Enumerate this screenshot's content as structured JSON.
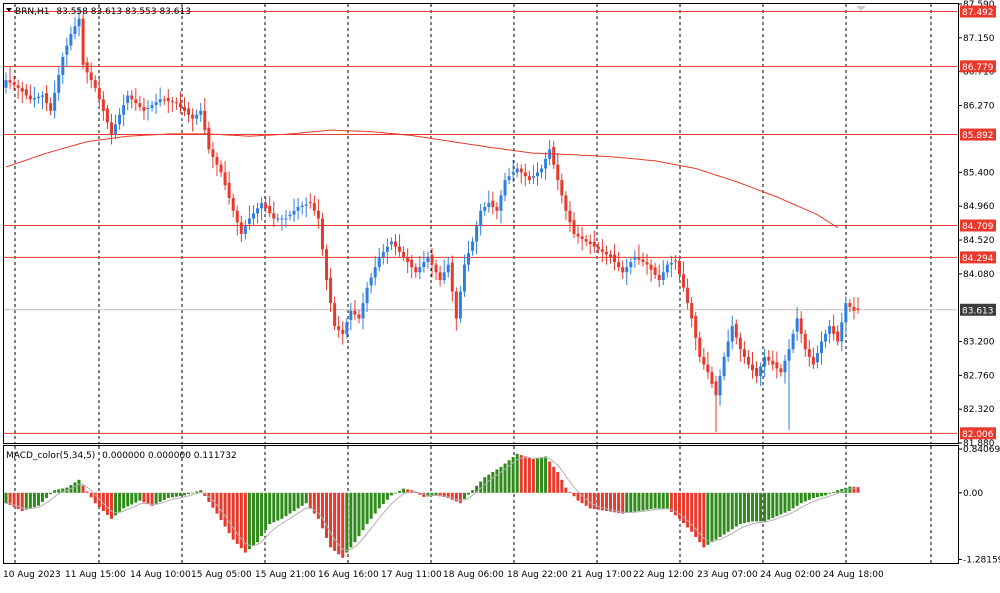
{
  "header": {
    "symbol": "BRN,H1",
    "ohlc": "83.558 83.613 83.553 83.613"
  },
  "indicator_header": {
    "name": "MACD_color(5,34,5)",
    "values": "0.000000 0.000000 0.111732"
  },
  "colors": {
    "bull": "#2f7fe0",
    "bear": "#e8392c",
    "level": "#e8392c",
    "ma": "#e8392c",
    "hist_up": "#2e8b1a",
    "hist_down": "#e8392c",
    "signal": "#b0b0b0",
    "current_tag": "#3c3c3c"
  },
  "chart_data": [
    {
      "type": "candlestick",
      "title": "",
      "ylim": [
        81.88,
        87.59
      ],
      "price_ticks": [
        "87.590",
        "87.150",
        "86.710",
        "86.270",
        "85.400",
        "84.960",
        "84.520",
        "84.080",
        "83.200",
        "82.760",
        "82.320",
        "81.880"
      ],
      "price_tick_values": [
        87.59,
        87.15,
        86.71,
        86.27,
        85.4,
        84.96,
        84.52,
        84.08,
        83.2,
        82.76,
        82.32,
        81.88
      ],
      "time_labels": [
        "10 Aug 2023",
        "11 Aug 15:00",
        "14 Aug 10:00",
        "15 Aug 05:00",
        "15 Aug 21:00",
        "16 Aug 16:00",
        "17 Aug 11:00",
        "18 Aug 06:00",
        "18 Aug 22:00",
        "21 Aug 17:00",
        "22 Aug 12:00",
        "23 Aug 07:00",
        "24 Aug 02:00",
        "24 Aug 18:00"
      ],
      "horizontal_levels": [
        "87.492",
        "86.779",
        "85.892",
        "84.709",
        "84.294",
        "82.006"
      ],
      "horizontal_level_values": [
        87.492,
        86.779,
        85.892,
        84.709,
        84.294,
        82.006
      ],
      "current_price": "83.613",
      "current_price_value": 83.613,
      "close_anchors": [
        [
          0,
          86.6
        ],
        [
          3,
          86.5
        ],
        [
          6,
          86.35
        ],
        [
          9,
          86.4
        ],
        [
          11,
          86.2
        ],
        [
          14,
          86.9
        ],
        [
          16,
          87.2
        ],
        [
          18,
          87.4
        ],
        [
          19,
          86.8
        ],
        [
          22,
          86.5
        ],
        [
          26,
          85.9
        ],
        [
          30,
          86.4
        ],
        [
          34,
          86.2
        ],
        [
          38,
          86.35
        ],
        [
          42,
          86.3
        ],
        [
          46,
          86.1
        ],
        [
          48,
          86.2
        ],
        [
          50,
          85.7
        ],
        [
          53,
          85.4
        ],
        [
          56,
          84.9
        ],
        [
          58,
          84.6
        ],
        [
          60,
          84.8
        ],
        [
          63,
          85.0
        ],
        [
          66,
          84.8
        ],
        [
          69,
          84.8
        ],
        [
          72,
          84.95
        ],
        [
          75,
          85.0
        ],
        [
          77,
          84.8
        ],
        [
          79,
          84.0
        ],
        [
          81,
          83.4
        ],
        [
          83,
          83.3
        ],
        [
          85,
          83.6
        ],
        [
          87,
          83.5
        ],
        [
          89,
          83.9
        ],
        [
          92,
          84.3
        ],
        [
          95,
          84.5
        ],
        [
          98,
          84.3
        ],
        [
          101,
          84.1
        ],
        [
          104,
          84.3
        ],
        [
          107,
          84.0
        ],
        [
          109,
          84.2
        ],
        [
          111,
          83.5
        ],
        [
          113,
          84.2
        ],
        [
          115,
          84.5
        ],
        [
          117,
          84.9
        ],
        [
          119,
          85.0
        ],
        [
          121,
          84.9
        ],
        [
          123,
          85.3
        ],
        [
          126,
          85.45
        ],
        [
          129,
          85.3
        ],
        [
          132,
          85.45
        ],
        [
          134,
          85.7
        ],
        [
          136,
          85.3
        ],
        [
          138,
          84.9
        ],
        [
          140,
          84.6
        ],
        [
          143,
          84.5
        ],
        [
          146,
          84.4
        ],
        [
          149,
          84.3
        ],
        [
          152,
          84.1
        ],
        [
          155,
          84.3
        ],
        [
          158,
          84.2
        ],
        [
          161,
          84.0
        ],
        [
          163,
          84.2
        ],
        [
          165,
          84.25
        ],
        [
          167,
          83.9
        ],
        [
          169,
          83.5
        ],
        [
          171,
          83.0
        ],
        [
          173,
          82.8
        ],
        [
          175,
          82.5
        ],
        [
          177,
          83.0
        ],
        [
          179,
          83.4
        ],
        [
          181,
          83.1
        ],
        [
          183,
          82.9
        ],
        [
          185,
          82.75
        ],
        [
          187,
          83.0
        ],
        [
          189,
          82.9
        ],
        [
          191,
          82.8
        ],
        [
          193,
          83.1
        ],
        [
          195,
          83.5
        ],
        [
          197,
          83.1
        ],
        [
          199,
          82.9
        ],
        [
          201,
          83.2
        ],
        [
          203,
          83.4
        ],
        [
          205,
          83.2
        ],
        [
          207,
          83.7
        ],
        [
          209,
          83.6
        ],
        [
          210,
          83.613
        ]
      ],
      "ma_anchors": [
        [
          0,
          85.47
        ],
        [
          10,
          85.65
        ],
        [
          20,
          85.8
        ],
        [
          30,
          85.87
        ],
        [
          40,
          85.9
        ],
        [
          50,
          85.9
        ],
        [
          60,
          85.87
        ],
        [
          70,
          85.9
        ],
        [
          80,
          85.95
        ],
        [
          90,
          85.93
        ],
        [
          100,
          85.88
        ],
        [
          110,
          85.8
        ],
        [
          120,
          85.72
        ],
        [
          130,
          85.65
        ],
        [
          140,
          85.63
        ],
        [
          150,
          85.6
        ],
        [
          160,
          85.55
        ],
        [
          170,
          85.45
        ],
        [
          180,
          85.28
        ],
        [
          190,
          85.08
        ],
        [
          200,
          84.85
        ],
        [
          205,
          84.68
        ]
      ]
    },
    {
      "type": "bar",
      "title": "MACD_color(5,34,5)",
      "ylim": [
        -1.35,
        0.9
      ],
      "ticks": [
        "0.840698",
        "0.00",
        "-1.28159"
      ],
      "tick_values": [
        0.840698,
        0.0,
        -1.28159
      ],
      "hist_anchors": [
        [
          0,
          -0.2
        ],
        [
          4,
          -0.35
        ],
        [
          8,
          -0.25
        ],
        [
          12,
          0.05
        ],
        [
          15,
          0.1
        ],
        [
          18,
          0.25
        ],
        [
          22,
          -0.2
        ],
        [
          26,
          -0.5
        ],
        [
          29,
          -0.3
        ],
        [
          33,
          -0.15
        ],
        [
          36,
          -0.25
        ],
        [
          40,
          -0.1
        ],
        [
          44,
          -0.05
        ],
        [
          48,
          0.05
        ],
        [
          52,
          -0.4
        ],
        [
          56,
          -0.9
        ],
        [
          59,
          -1.15
        ],
        [
          62,
          -0.95
        ],
        [
          65,
          -0.6
        ],
        [
          68,
          -0.5
        ],
        [
          71,
          -0.35
        ],
        [
          74,
          -0.2
        ],
        [
          77,
          -0.5
        ],
        [
          80,
          -1.05
        ],
        [
          83,
          -1.25
        ],
        [
          86,
          -0.95
        ],
        [
          89,
          -0.6
        ],
        [
          92,
          -0.3
        ],
        [
          95,
          -0.05
        ],
        [
          98,
          0.08
        ],
        [
          100,
          0.05
        ],
        [
          103,
          -0.08
        ],
        [
          106,
          -0.05
        ],
        [
          109,
          -0.1
        ],
        [
          112,
          -0.2
        ],
        [
          115,
          0.05
        ],
        [
          118,
          0.3
        ],
        [
          122,
          0.5
        ],
        [
          126,
          0.75
        ],
        [
          130,
          0.65
        ],
        [
          133,
          0.7
        ],
        [
          136,
          0.4
        ],
        [
          138,
          0.1
        ],
        [
          141,
          -0.15
        ],
        [
          144,
          -0.3
        ],
        [
          148,
          -0.35
        ],
        [
          152,
          -0.4
        ],
        [
          156,
          -0.35
        ],
        [
          160,
          -0.3
        ],
        [
          163,
          -0.3
        ],
        [
          166,
          -0.5
        ],
        [
          169,
          -0.75
        ],
        [
          172,
          -1.05
        ],
        [
          175,
          -0.9
        ],
        [
          178,
          -0.75
        ],
        [
          181,
          -0.6
        ],
        [
          184,
          -0.55
        ],
        [
          187,
          -0.55
        ],
        [
          190,
          -0.45
        ],
        [
          193,
          -0.35
        ],
        [
          196,
          -0.2
        ],
        [
          199,
          -0.1
        ],
        [
          202,
          -0.05
        ],
        [
          205,
          0.05
        ],
        [
          208,
          0.12
        ],
        [
          210,
          0.111732
        ]
      ]
    }
  ]
}
